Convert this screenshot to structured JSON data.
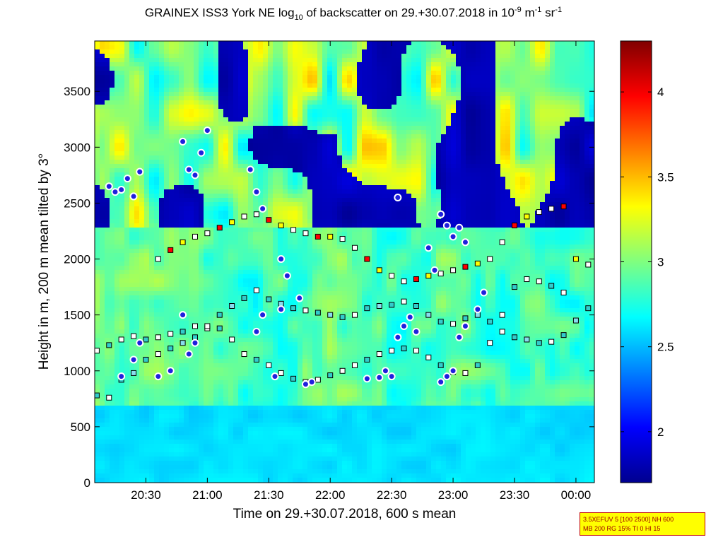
{
  "chart_data": {
    "type": "heatmap",
    "title": {
      "pre": "GRAINEX ISS3 York NE log",
      "sub": "10",
      "mid": " of backscatter on 29.+30.07.2018 in 10",
      "sup1": "-9",
      "unit_m": " m",
      "sup2": "-1",
      "unit_sr": " sr",
      "sup3": "-1"
    },
    "xlabel": "Time on 29.+30.07.2018, 600 s mean",
    "ylabel": "Height in m, 200 m mean tilted by 3°",
    "x_range_hours": [
      20.0833,
      24.15
    ],
    "x_ticks": [
      {
        "value": 20.5,
        "label": "20:30"
      },
      {
        "value": 21.0,
        "label": "21:00"
      },
      {
        "value": 21.5,
        "label": "21:30"
      },
      {
        "value": 22.0,
        "label": "22:00"
      },
      {
        "value": 22.5,
        "label": "22:30"
      },
      {
        "value": 23.0,
        "label": "23:00"
      },
      {
        "value": 23.5,
        "label": "23:30"
      },
      {
        "value": 24.0,
        "label": "00:00"
      }
    ],
    "ylim": [
      0,
      3950
    ],
    "y_ticks": [
      0,
      500,
      1000,
      1500,
      2000,
      2500,
      3000,
      3500
    ],
    "colorbar": {
      "range": [
        1.7,
        4.3
      ],
      "ticks": [
        2,
        2.5,
        3,
        3.5,
        4
      ],
      "colormap": "jet"
    },
    "layer_markers": {
      "layer_a": [
        [
          20.1,
          780
        ],
        [
          20.2,
          760
        ],
        [
          20.3,
          920
        ],
        [
          20.4,
          980
        ],
        [
          20.5,
          1100
        ],
        [
          20.6,
          1150
        ],
        [
          20.7,
          1200
        ],
        [
          20.8,
          1250
        ],
        [
          20.9,
          1300
        ],
        [
          21.0,
          1380
        ],
        [
          21.1,
          1500
        ],
        [
          21.2,
          1580
        ],
        [
          21.3,
          1650
        ],
        [
          21.4,
          1720
        ],
        [
          21.5,
          1640
        ],
        [
          21.6,
          1600
        ],
        [
          21.7,
          1560
        ],
        [
          21.8,
          1540
        ],
        [
          21.9,
          1520
        ],
        [
          22.0,
          1500
        ],
        [
          22.1,
          1480
        ],
        [
          22.2,
          1500
        ],
        [
          22.3,
          1560
        ],
        [
          22.4,
          1580
        ],
        [
          22.5,
          1590
        ],
        [
          22.6,
          1620
        ],
        [
          22.7,
          1580
        ],
        [
          22.8,
          1500
        ],
        [
          22.9,
          1440
        ],
        [
          23.0,
          1420
        ],
        [
          23.1,
          1470
        ],
        [
          23.2,
          1500
        ],
        [
          23.3,
          1440
        ],
        [
          23.4,
          1350
        ],
        [
          23.5,
          1300
        ],
        [
          23.6,
          1280
        ],
        [
          23.7,
          1250
        ],
        [
          23.8,
          1260
        ],
        [
          23.9,
          1320
        ],
        [
          24.0,
          1450
        ],
        [
          24.1,
          1560
        ]
      ],
      "layer_b": [
        [
          20.1,
          1180
        ],
        [
          20.2,
          1230
        ],
        [
          20.3,
          1280
        ],
        [
          20.4,
          1310
        ],
        [
          20.5,
          1280
        ],
        [
          20.6,
          1300
        ],
        [
          20.7,
          1330
        ],
        [
          20.8,
          1350
        ],
        [
          20.9,
          1400
        ],
        [
          21.0,
          1400
        ],
        [
          21.1,
          1380
        ],
        [
          21.2,
          1280
        ],
        [
          21.3,
          1150
        ],
        [
          21.4,
          1100
        ],
        [
          21.5,
          1050
        ],
        [
          21.6,
          980
        ],
        [
          21.7,
          930
        ],
        [
          21.8,
          900
        ],
        [
          21.9,
          920
        ],
        [
          22.0,
          960
        ],
        [
          22.1,
          1000
        ],
        [
          22.2,
          1050
        ],
        [
          22.3,
          1100
        ],
        [
          22.4,
          1150
        ],
        [
          22.5,
          1180
        ],
        [
          22.6,
          1200
        ],
        [
          22.7,
          1180
        ],
        [
          22.8,
          1120
        ],
        [
          22.9,
          1050
        ],
        [
          23.0,
          990
        ],
        [
          23.1,
          980
        ],
        [
          23.2,
          1050
        ],
        [
          23.3,
          1250
        ],
        [
          23.4,
          1500
        ],
        [
          23.5,
          1750
        ],
        [
          23.6,
          1820
        ],
        [
          23.7,
          1800
        ],
        [
          23.8,
          1760
        ],
        [
          23.9,
          1700
        ]
      ],
      "layer_c": [
        [
          20.6,
          2000
        ],
        [
          20.7,
          2080
        ],
        [
          20.8,
          2150
        ],
        [
          20.9,
          2200
        ],
        [
          21.0,
          2230
        ],
        [
          21.1,
          2280
        ],
        [
          21.2,
          2330
        ],
        [
          21.3,
          2380
        ],
        [
          21.4,
          2400
        ],
        [
          21.5,
          2350
        ],
        [
          21.6,
          2300
        ],
        [
          21.7,
          2260
        ],
        [
          21.8,
          2230
        ],
        [
          21.9,
          2200
        ],
        [
          22.0,
          2200
        ],
        [
          22.1,
          2180
        ],
        [
          22.2,
          2100
        ],
        [
          22.3,
          2000
        ],
        [
          22.4,
          1900
        ],
        [
          22.5,
          1850
        ],
        [
          22.6,
          1800
        ],
        [
          22.7,
          1820
        ],
        [
          22.8,
          1850
        ],
        [
          22.9,
          1870
        ],
        [
          23.0,
          1900
        ],
        [
          23.1,
          1930
        ],
        [
          23.2,
          1960
        ],
        [
          23.3,
          2000
        ],
        [
          23.4,
          2150
        ],
        [
          23.5,
          2300
        ],
        [
          23.6,
          2380
        ],
        [
          23.7,
          2420
        ],
        [
          23.8,
          2450
        ],
        [
          23.9,
          2470
        ],
        [
          24.0,
          2000
        ],
        [
          24.1,
          1950
        ]
      ],
      "cloud_base": [
        [
          20.2,
          2650
        ],
        [
          20.25,
          2600
        ],
        [
          20.3,
          2620
        ],
        [
          20.35,
          2720
        ],
        [
          20.4,
          2560
        ],
        [
          20.45,
          2780
        ],
        [
          20.8,
          3050
        ],
        [
          20.85,
          2800
        ],
        [
          20.9,
          2750
        ],
        [
          20.95,
          2950
        ],
        [
          21.0,
          3150
        ],
        [
          21.35,
          2800
        ],
        [
          21.4,
          2600
        ],
        [
          21.45,
          2450
        ],
        [
          22.55,
          2550
        ],
        [
          22.9,
          2400
        ],
        [
          22.95,
          2300
        ],
        [
          23.0,
          2200
        ],
        [
          23.05,
          2280
        ],
        [
          23.1,
          2150
        ],
        [
          20.3,
          950
        ],
        [
          20.4,
          1100
        ],
        [
          20.45,
          1250
        ],
        [
          20.6,
          950
        ],
        [
          20.7,
          1000
        ],
        [
          20.85,
          1150
        ],
        [
          20.9,
          1250
        ],
        [
          21.4,
          1350
        ],
        [
          21.45,
          1500
        ],
        [
          21.6,
          1550
        ],
        [
          21.55,
          950
        ],
        [
          21.8,
          880
        ],
        [
          21.85,
          900
        ],
        [
          22.3,
          930
        ],
        [
          22.4,
          940
        ],
        [
          22.5,
          950
        ],
        [
          22.55,
          1300
        ],
        [
          22.6,
          1400
        ],
        [
          22.9,
          900
        ],
        [
          22.95,
          950
        ],
        [
          23.0,
          1000
        ],
        [
          23.05,
          1300
        ],
        [
          23.1,
          1400
        ],
        [
          23.2,
          1550
        ],
        [
          23.25,
          1700
        ],
        [
          22.85,
          1900
        ],
        [
          22.8,
          2100
        ],
        [
          21.6,
          2000
        ],
        [
          21.65,
          1850
        ],
        [
          21.75,
          1650
        ],
        [
          20.8,
          1500
        ],
        [
          22.65,
          1480
        ],
        [
          22.7,
          1350
        ],
        [
          22.45,
          1000
        ]
      ]
    },
    "info_box": {
      "line1": "3.5XEFUV 5 [100 2500] NH 600",
      "line2": "MB 200 RG 15% TI 0 HI 15"
    }
  }
}
